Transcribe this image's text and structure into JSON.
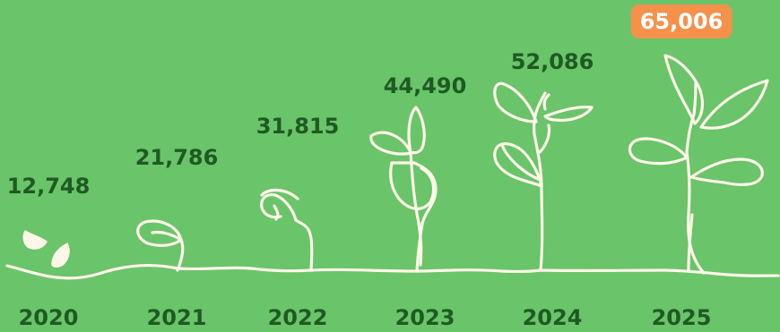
{
  "colors": {
    "background": "#6ac46a",
    "text": "#1f5a23",
    "line": "#fff8e8",
    "highlight": "#f5914b"
  },
  "chart_data": {
    "type": "bar",
    "categories": [
      "2020",
      "2021",
      "2022",
      "2023",
      "2024",
      "2025"
    ],
    "values": [
      12748,
      21786,
      31815,
      44490,
      52086,
      65006
    ],
    "value_labels": [
      "12,748",
      "21,786",
      "31,815",
      "44,490",
      "52,086",
      "65,006"
    ],
    "highlighted_category": "2025",
    "mark_style": "plant growth stages"
  }
}
